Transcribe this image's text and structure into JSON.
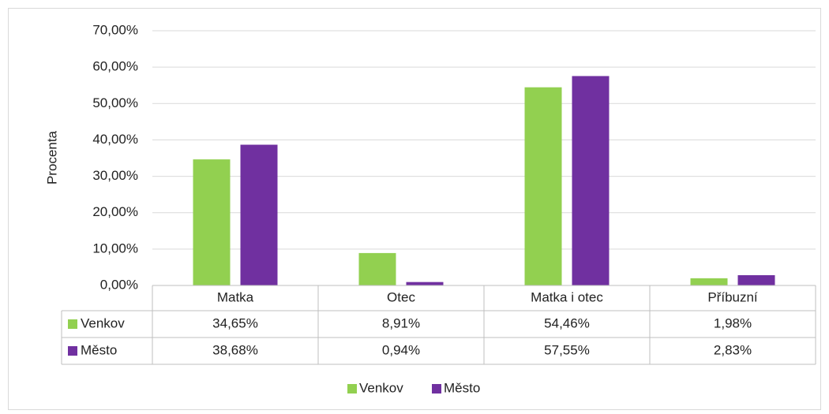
{
  "chart_data": {
    "type": "bar",
    "y_label": "Procenta",
    "categories": [
      "Matka",
      "Otec",
      "Matka i otec",
      "Příbuzní"
    ],
    "series": [
      {
        "name": "Venkov",
        "color": "#92d050",
        "values": [
          34.65,
          8.91,
          54.46,
          1.98
        ],
        "value_labels": [
          "34,65%",
          "8,91%",
          "54,46%",
          "1,98%"
        ]
      },
      {
        "name": "Město",
        "color": "#7030a0",
        "values": [
          38.68,
          0.94,
          57.55,
          2.83
        ],
        "value_labels": [
          "38,68%",
          "0,94%",
          "57,55%",
          "2,83%"
        ]
      }
    ],
    "ylim": [
      0,
      70
    ],
    "yticks": [
      {
        "value": 0,
        "label": "0,00%"
      },
      {
        "value": 10,
        "label": "10,00%"
      },
      {
        "value": 20,
        "label": "20,00%"
      },
      {
        "value": 30,
        "label": "30,00%"
      },
      {
        "value": 40,
        "label": "40,00%"
      },
      {
        "value": 50,
        "label": "50,00%"
      },
      {
        "value": 60,
        "label": "60,00%"
      },
      {
        "value": 70,
        "label": "70,00%"
      }
    ],
    "grid": true,
    "legend": "bottom"
  }
}
